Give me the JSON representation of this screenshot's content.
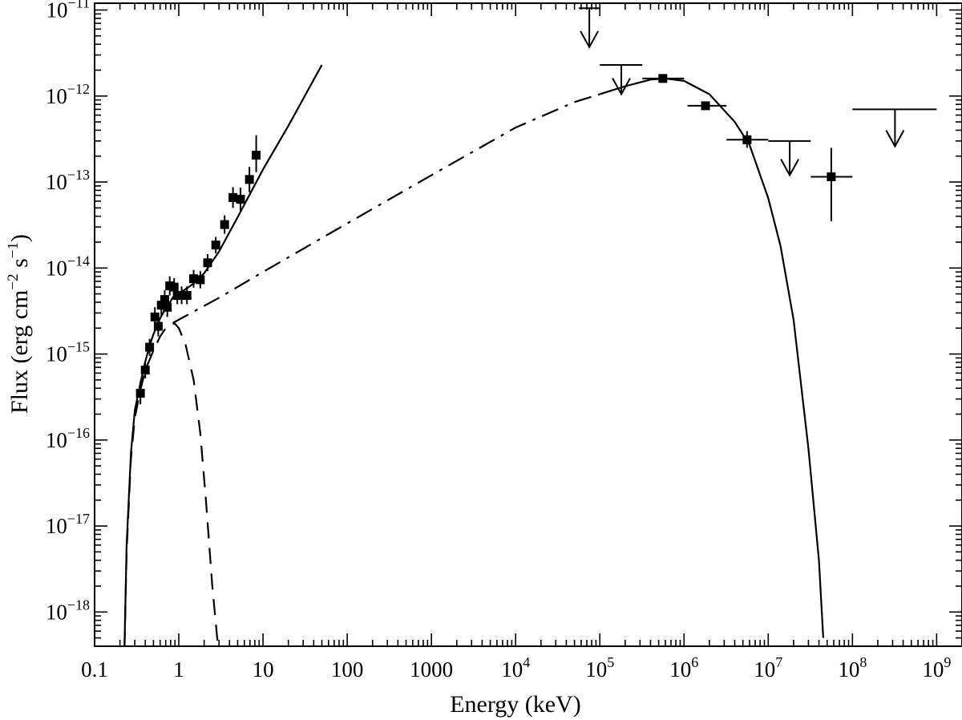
{
  "chart_data": {
    "type": "scatter",
    "xlabel": "Energy (keV)",
    "ylabel_parts": [
      "Flux (erg cm",
      "−2",
      " s",
      "−1",
      ")"
    ],
    "xscale": "log",
    "yscale": "log",
    "xlim": [
      0.1,
      2000000000.0
    ],
    "ylim": [
      4e-19,
      1.2e-11
    ],
    "grid": false,
    "x_ticks": [
      {
        "value": 0.1,
        "base": "0.1"
      },
      {
        "value": 1,
        "base": "1"
      },
      {
        "value": 10,
        "base": "10"
      },
      {
        "value": 100,
        "base": "100"
      },
      {
        "value": 1000,
        "base": "1000"
      },
      {
        "value": 10000,
        "base": "10",
        "exp": "4"
      },
      {
        "value": 100000,
        "base": "10",
        "exp": "5"
      },
      {
        "value": 1000000,
        "base": "10",
        "exp": "6"
      },
      {
        "value": 10000000,
        "base": "10",
        "exp": "7"
      },
      {
        "value": 100000000,
        "base": "10",
        "exp": "8"
      },
      {
        "value": 1000000000,
        "base": "10",
        "exp": "9"
      }
    ],
    "y_ticks": [
      {
        "value": 1e-18,
        "base": "10",
        "exp": "−18"
      },
      {
        "value": 1e-17,
        "base": "10",
        "exp": "−17"
      },
      {
        "value": 1e-16,
        "base": "10",
        "exp": "−16"
      },
      {
        "value": 1e-15,
        "base": "10",
        "exp": "−15"
      },
      {
        "value": 1e-14,
        "base": "10",
        "exp": "−14"
      },
      {
        "value": 1e-13,
        "base": "10",
        "exp": "−13"
      },
      {
        "value": 1e-12,
        "base": "10",
        "exp": "−12"
      },
      {
        "value": 1e-11,
        "base": "10",
        "exp": "−11"
      }
    ],
    "xray_points": [
      {
        "x": 0.35,
        "y": 3.5e-16,
        "xerr": [
          0.33,
          0.37
        ],
        "yerr": [
          2.6e-16,
          4.5e-16
        ]
      },
      {
        "x": 0.4,
        "y": 6.5e-16,
        "xerr": [
          0.38,
          0.42
        ],
        "yerr": [
          5.2e-16,
          8e-16
        ]
      },
      {
        "x": 0.45,
        "y": 1.2e-15,
        "xerr": [
          0.43,
          0.47
        ],
        "yerr": [
          9.5e-16,
          1.5e-15
        ]
      },
      {
        "x": 0.52,
        "y": 2.7e-15,
        "xerr": [
          0.5,
          0.54
        ],
        "yerr": [
          2e-15,
          3.5e-15
        ]
      },
      {
        "x": 0.57,
        "y": 2.1e-15,
        "xerr": [
          0.55,
          0.59
        ],
        "yerr": [
          1.6e-15,
          2.7e-15
        ]
      },
      {
        "x": 0.62,
        "y": 3.7e-15,
        "xerr": [
          0.6,
          0.64
        ],
        "yerr": [
          2.8e-15,
          4.8e-15
        ]
      },
      {
        "x": 0.68,
        "y": 4.3e-15,
        "xerr": [
          0.66,
          0.7
        ],
        "yerr": [
          3.3e-15,
          5.5e-15
        ]
      },
      {
        "x": 0.73,
        "y": 3.5e-15,
        "xerr": [
          0.71,
          0.75
        ],
        "yerr": [
          2.7e-15,
          4.5e-15
        ]
      },
      {
        "x": 0.78,
        "y": 6.2e-15,
        "xerr": [
          0.75,
          0.81
        ],
        "yerr": [
          4.8e-15,
          8e-15
        ]
      },
      {
        "x": 0.88,
        "y": 6e-15,
        "xerr": [
          0.85,
          0.92
        ],
        "yerr": [
          4.7e-15,
          7.6e-15
        ]
      },
      {
        "x": 0.96,
        "y": 4.8e-15,
        "xerr": [
          0.93,
          1.0
        ],
        "yerr": [
          3.8e-15,
          6.1e-15
        ]
      },
      {
        "x": 1.08,
        "y": 4.8e-15,
        "xerr": [
          1.03,
          1.14
        ],
        "yerr": [
          3.8e-15,
          6.1e-15
        ]
      },
      {
        "x": 1.25,
        "y": 4.8e-15,
        "xerr": [
          1.18,
          1.34
        ],
        "yerr": [
          3.8e-15,
          6.1e-15
        ]
      },
      {
        "x": 1.5,
        "y": 7.5e-15,
        "xerr": [
          1.4,
          1.6
        ],
        "yerr": [
          5.9e-15,
          9.5e-15
        ]
      },
      {
        "x": 1.8,
        "y": 7.3e-15,
        "xerr": [
          1.66,
          1.95
        ],
        "yerr": [
          5.8e-15,
          9.2e-15
        ]
      },
      {
        "x": 2.2,
        "y": 1.15e-14,
        "xerr": [
          2.0,
          2.4
        ],
        "yerr": [
          9.2e-15,
          1.45e-14
        ]
      },
      {
        "x": 2.75,
        "y": 1.85e-14,
        "xerr": [
          2.5,
          3.0
        ],
        "yerr": [
          1.48e-14,
          2.3e-14
        ]
      },
      {
        "x": 3.5,
        "y": 3.2e-14,
        "xerr": [
          3.2,
          3.85
        ],
        "yerr": [
          2.5e-14,
          4.1e-14
        ]
      },
      {
        "x": 4.4,
        "y": 6.6e-14,
        "xerr": [
          4.05,
          4.8
        ],
        "yerr": [
          5e-14,
          8.7e-14
        ]
      },
      {
        "x": 5.4,
        "y": 6.3e-14,
        "xerr": [
          4.9,
          5.9
        ],
        "yerr": [
          4.6e-14,
          8.6e-14
        ]
      },
      {
        "x": 6.9,
        "y": 1.07e-13,
        "xerr": [
          6.3,
          7.5
        ],
        "yerr": [
          7.6e-14,
          1.5e-13
        ]
      },
      {
        "x": 8.3,
        "y": 2.05e-13,
        "xerr": [
          7.8,
          8.8
        ],
        "yerr": [
          1.3e-13,
          3.5e-13
        ]
      }
    ],
    "gamma_points": [
      {
        "x": 560000,
        "y": 1.6e-12,
        "xerr": [
          320000,
          1000000
        ],
        "yerr": [
          1.5e-12,
          1.7e-12
        ]
      },
      {
        "x": 1800000,
        "y": 7.7e-13,
        "xerr": [
          1100000,
          3200000
        ],
        "yerr": [
          7e-13,
          8.5e-13
        ]
      },
      {
        "x": 5600000,
        "y": 3.1e-13,
        "xerr": [
          3200000,
          10000000
        ],
        "yerr": [
          2.5e-13,
          3.9e-13
        ]
      },
      {
        "x": 56000000,
        "y": 1.15e-13,
        "xerr": [
          32000000,
          100000000
        ],
        "yerr": [
          3.5e-14,
          2.5e-13
        ]
      }
    ],
    "upper_limits": [
      {
        "x": 75000,
        "y": 1.05e-11,
        "xerr": [
          56000,
          100000
        ],
        "arrow_to": 3.7e-12
      },
      {
        "x": 180000,
        "y": 2.3e-12,
        "xerr": [
          100000,
          320000
        ],
        "arrow_to": 1.05e-12
      },
      {
        "x": 18000000,
        "y": 3e-13,
        "xerr": [
          10000000,
          32000000
        ],
        "arrow_to": 1.2e-13
      },
      {
        "x": 320000000,
        "y": 7e-13,
        "xerr": [
          100000000,
          1000000000
        ],
        "arrow_to": 2.6e-13
      }
    ],
    "models": {
      "powerlaw_solid_fit": [
        [
          0.85,
          4.6e-15
        ],
        [
          1.0,
          5e-15
        ],
        [
          1.5,
          6.6e-15
        ],
        [
          2,
          8.7e-15
        ],
        [
          3,
          1.55e-14
        ],
        [
          5,
          3.9e-14
        ],
        [
          10,
          1.4e-13
        ],
        [
          20,
          4.5e-13
        ],
        [
          50,
          2.3e-12
        ]
      ],
      "thermal_dashed": [
        [
          0.22,
          1e-19
        ],
        [
          0.24,
          5e-18
        ],
        [
          0.27,
          6e-17
        ],
        [
          0.3,
          1.8e-16
        ],
        [
          0.35,
          3.8e-16
        ],
        [
          0.4,
          6.5e-16
        ],
        [
          0.5,
          1.1e-15
        ],
        [
          0.6,
          1.6e-15
        ],
        [
          0.7,
          2e-15
        ],
        [
          0.8,
          2.25e-15
        ],
        [
          0.9,
          2.25e-15
        ],
        [
          1.0,
          2e-15
        ],
        [
          1.2,
          1.3e-15
        ],
        [
          1.5,
          5e-16
        ],
        [
          1.8,
          1.2e-16
        ],
        [
          2.1,
          2e-17
        ],
        [
          2.5,
          2e-18
        ],
        [
          3.0,
          3e-19
        ]
      ],
      "total_solid_lowE": [
        [
          0.22,
          1e-19
        ],
        [
          0.24,
          6e-18
        ],
        [
          0.27,
          7e-17
        ],
        [
          0.3,
          2.2e-16
        ],
        [
          0.35,
          4.6e-16
        ],
        [
          0.4,
          8.2e-16
        ],
        [
          0.45,
          1.25e-15
        ],
        [
          0.5,
          1.7e-15
        ],
        [
          0.6,
          2.6e-15
        ],
        [
          0.7,
          3.4e-15
        ],
        [
          0.8,
          4.1e-15
        ],
        [
          0.85,
          4.6e-15
        ]
      ],
      "ic_dashdot": [
        [
          0.85,
          2.3e-15
        ],
        [
          3,
          4.5e-15
        ],
        [
          10,
          9e-15
        ],
        [
          100,
          3.3e-14
        ],
        [
          1000,
          1.2e-13
        ],
        [
          10000,
          4.3e-13
        ],
        [
          50000,
          8.5e-13
        ],
        [
          100000,
          1.05e-12
        ]
      ],
      "ic_solid_cutoff": [
        [
          100000,
          1.05e-12
        ],
        [
          200000,
          1.3e-12
        ],
        [
          400000,
          1.55e-12
        ],
        [
          600000,
          1.6e-12
        ],
        [
          1000000,
          1.5e-12
        ],
        [
          2000000,
          1.05e-12
        ],
        [
          4000000,
          5e-13
        ],
        [
          6000000,
          2.7e-13
        ],
        [
          10000000,
          6.5e-14
        ],
        [
          14000000,
          1.8e-14
        ],
        [
          20000000,
          2.5e-15
        ],
        [
          30000000,
          8e-17
        ],
        [
          40000000,
          4e-18
        ],
        [
          45000000,
          5e-19
        ]
      ]
    }
  }
}
